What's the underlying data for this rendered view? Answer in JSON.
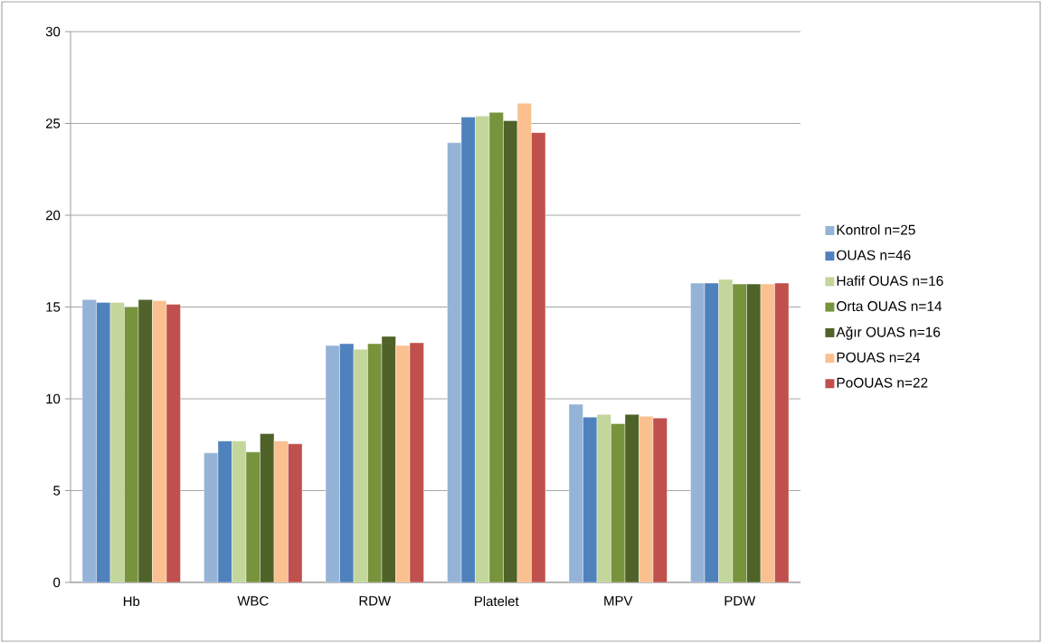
{
  "chart_data": {
    "type": "bar",
    "categories": [
      "Hb",
      "WBC",
      "RDW",
      "Platelet",
      "MPV",
      "PDW"
    ],
    "series": [
      {
        "name": "Kontrol n=25",
        "color": "#95b3d7",
        "values": [
          15.4,
          7.05,
          12.9,
          23.95,
          9.7,
          16.3
        ]
      },
      {
        "name": "OUAS n=46",
        "color": "#4f81bd",
        "values": [
          15.25,
          7.7,
          13.0,
          25.35,
          9.0,
          16.3
        ]
      },
      {
        "name": "Hafif OUAS n=16",
        "color": "#c3d69b",
        "values": [
          15.25,
          7.7,
          12.7,
          25.4,
          9.15,
          16.5
        ]
      },
      {
        "name": "Orta OUAS n=14",
        "color": "#77933c",
        "values": [
          15.0,
          7.1,
          13.0,
          25.6,
          8.65,
          16.25
        ]
      },
      {
        "name": "Ağır OUAS n=16",
        "color": "#4f6228",
        "values": [
          15.4,
          8.1,
          13.4,
          25.15,
          9.15,
          16.25
        ]
      },
      {
        "name": "POUAS n=24",
        "color": "#fac090",
        "values": [
          15.35,
          7.7,
          12.9,
          26.1,
          9.05,
          16.25
        ]
      },
      {
        "name": "PoOUAS n=22",
        "color": "#c0504d",
        "values": [
          15.15,
          7.55,
          13.05,
          24.5,
          8.95,
          16.3
        ]
      }
    ],
    "ylim": [
      0,
      30
    ],
    "yticks": [
      0,
      5,
      10,
      15,
      20,
      25,
      30
    ],
    "grid": "y",
    "legend": "right"
  }
}
